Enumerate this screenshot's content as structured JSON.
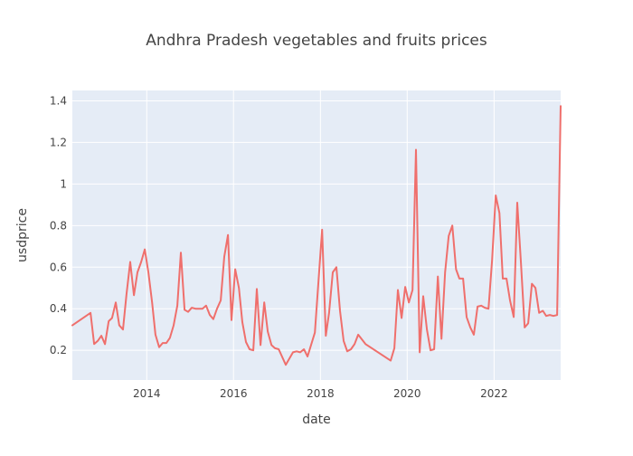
{
  "chart_data": {
    "type": "line",
    "title": "Andhra Pradesh vegetables and fruits prices",
    "xlabel": "date",
    "ylabel": "usdprice",
    "x_ticks": [
      "2014",
      "2016",
      "2018",
      "2020",
      "2022"
    ],
    "y_ticks": [
      "0.2",
      "0.4",
      "0.6",
      "0.8",
      "1",
      "1.2",
      "1.4"
    ],
    "xlim": [
      "2012-04-15",
      "2023-07-15"
    ],
    "ylim": [
      0.057,
      1.45
    ],
    "grid": true,
    "colors": {
      "plot_background": "#e5ecf6",
      "gridline": "#ffffff",
      "line": "#ef6f6c",
      "text": "#444444"
    },
    "series": [
      {
        "x": [
          "2012-04-15",
          "2012-09-15",
          "2012-10-15",
          "2012-11-15",
          "2012-12-15",
          "2013-01-15",
          "2013-02-15",
          "2013-03-15",
          "2013-04-15",
          "2013-05-15",
          "2013-06-15",
          "2013-07-15",
          "2013-08-15",
          "2013-09-15",
          "2013-10-15",
          "2013-11-15",
          "2013-12-15",
          "2014-01-15",
          "2014-02-15",
          "2014-03-15",
          "2014-04-15",
          "2014-05-15",
          "2014-06-15",
          "2014-07-15",
          "2014-08-15",
          "2014-09-15",
          "2014-10-15",
          "2014-11-15",
          "2014-12-15",
          "2015-01-15",
          "2015-02-15",
          "2015-03-15",
          "2015-04-15",
          "2015-05-15",
          "2015-06-15",
          "2015-07-15",
          "2015-08-15",
          "2015-09-15",
          "2015-10-15",
          "2015-11-15",
          "2015-12-15",
          "2016-01-15",
          "2016-02-15",
          "2016-03-15",
          "2016-04-15",
          "2016-05-15",
          "2016-06-15",
          "2016-07-15",
          "2016-08-15",
          "2016-09-15",
          "2016-10-15",
          "2016-11-15",
          "2016-12-15",
          "2017-01-15",
          "2017-03-15",
          "2017-05-15",
          "2017-06-15",
          "2017-07-15",
          "2017-08-15",
          "2017-09-15",
          "2017-11-15",
          "2018-01-15",
          "2018-02-15",
          "2018-03-15",
          "2018-04-15",
          "2018-05-15",
          "2018-06-15",
          "2018-07-15",
          "2018-08-15",
          "2018-09-15",
          "2018-10-15",
          "2018-11-15",
          "2019-01-15",
          "2019-08-15",
          "2019-09-15",
          "2019-10-15",
          "2019-11-15",
          "2019-12-15",
          "2020-01-15",
          "2020-02-15",
          "2020-03-15",
          "2020-04-15",
          "2020-05-15",
          "2020-06-15",
          "2020-07-15",
          "2020-08-15",
          "2020-09-15",
          "2020-10-15",
          "2020-11-15",
          "2020-12-15",
          "2021-01-15",
          "2021-02-15",
          "2021-03-15",
          "2021-04-15",
          "2021-05-15",
          "2021-06-15",
          "2021-07-15",
          "2021-08-15",
          "2021-09-15",
          "2021-10-15",
          "2021-11-15",
          "2021-12-15",
          "2022-01-15",
          "2022-02-15",
          "2022-03-15",
          "2022-04-15",
          "2022-05-15",
          "2022-06-15",
          "2022-07-15",
          "2022-08-15",
          "2022-09-15",
          "2022-10-15",
          "2022-11-15",
          "2022-12-15",
          "2023-01-15",
          "2023-02-15",
          "2023-03-15",
          "2023-04-15",
          "2023-05-15",
          "2023-06-15",
          "2023-07-15"
        ],
        "y": [
          0.32,
          0.38,
          0.23,
          0.245,
          0.27,
          0.23,
          0.34,
          0.355,
          0.43,
          0.32,
          0.3,
          0.47,
          0.625,
          0.465,
          0.575,
          0.625,
          0.685,
          0.575,
          0.43,
          0.275,
          0.215,
          0.235,
          0.235,
          0.26,
          0.32,
          0.415,
          0.67,
          0.395,
          0.385,
          0.405,
          0.4,
          0.4,
          0.4,
          0.415,
          0.37,
          0.35,
          0.4,
          0.44,
          0.65,
          0.755,
          0.345,
          0.59,
          0.5,
          0.335,
          0.24,
          0.205,
          0.2,
          0.495,
          0.225,
          0.43,
          0.29,
          0.225,
          0.21,
          0.205,
          0.13,
          0.19,
          0.195,
          0.19,
          0.205,
          0.17,
          0.285,
          0.78,
          0.27,
          0.38,
          0.575,
          0.6,
          0.39,
          0.245,
          0.195,
          0.205,
          0.23,
          0.275,
          0.23,
          0.15,
          0.21,
          0.49,
          0.355,
          0.505,
          0.43,
          0.49,
          1.165,
          0.19,
          0.46,
          0.3,
          0.2,
          0.205,
          0.555,
          0.255,
          0.575,
          0.75,
          0.8,
          0.59,
          0.545,
          0.545,
          0.36,
          0.31,
          0.275,
          0.41,
          0.415,
          0.405,
          0.4,
          0.635,
          0.945,
          0.86,
          0.545,
          0.545,
          0.44,
          0.36,
          0.91,
          0.62,
          0.31,
          0.33,
          0.52,
          0.5,
          0.38,
          0.39,
          0.365,
          0.37,
          0.365,
          0.37,
          1.375
        ]
      }
    ]
  }
}
